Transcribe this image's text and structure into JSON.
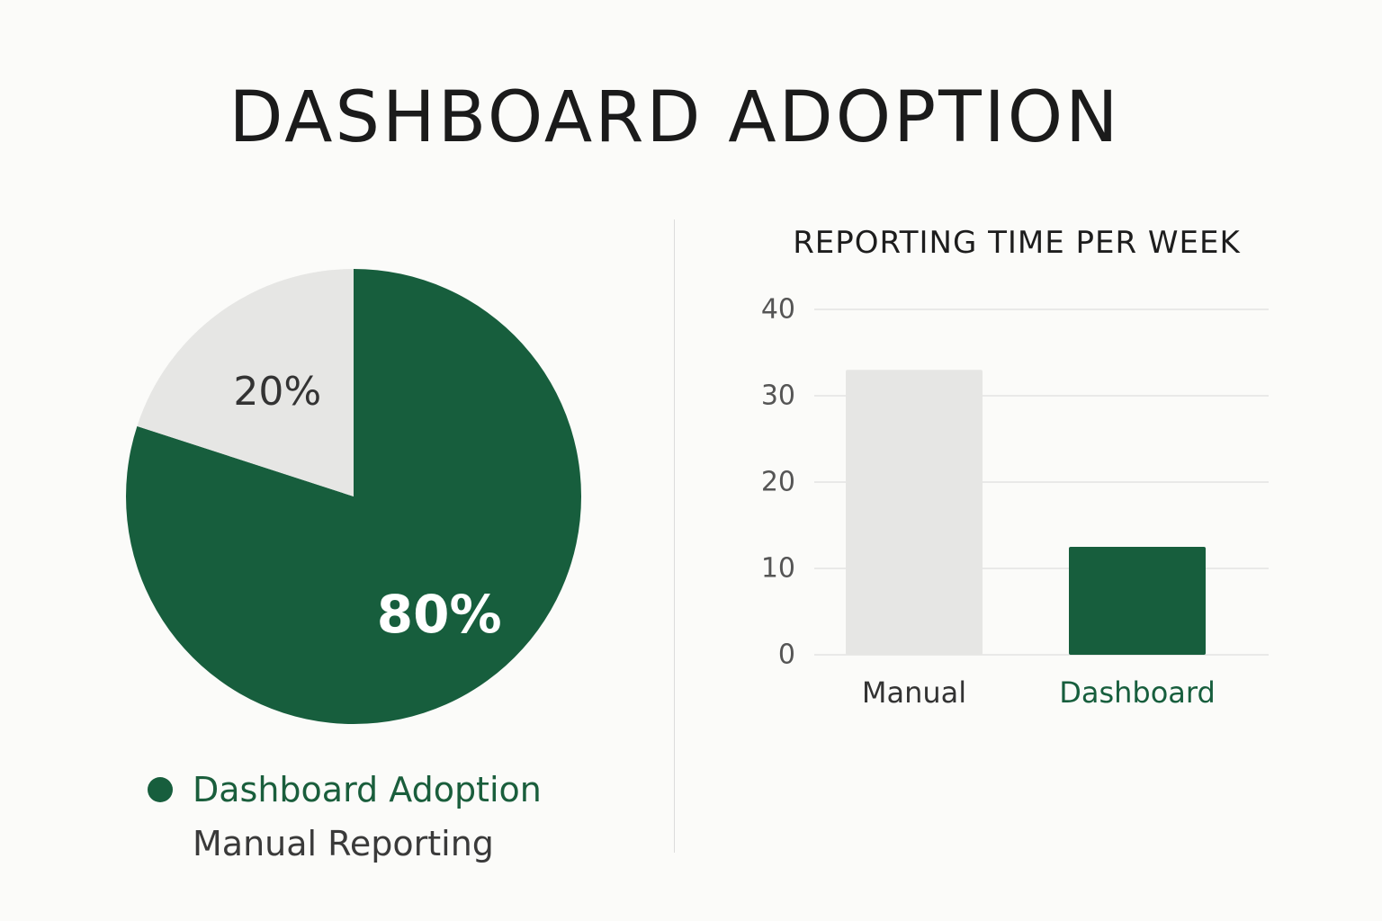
{
  "title": "DASHBOARD ADOPTION",
  "colors": {
    "primary": "#175e3d",
    "secondary": "#e6e6e4",
    "grid": "#e3e3e3",
    "pie_label_dark": "#333333",
    "pie_label_light": "#ffffff"
  },
  "legend": {
    "items": [
      {
        "label": "Dashboard Adoption",
        "color": "#175e3d"
      },
      {
        "label": "Manual Reporting",
        "color": "transparent"
      }
    ]
  },
  "chart_data": [
    {
      "type": "pie",
      "slices": [
        {
          "name": "Dashboard Adoption",
          "value": 80,
          "label": "80%"
        },
        {
          "name": "Manual Reporting",
          "value": 20,
          "label": "20%"
        }
      ]
    },
    {
      "type": "bar",
      "title": "REPORTING TIME PER WEEK",
      "categories": [
        "Manual",
        "Dashboard"
      ],
      "values": [
        33,
        12.5
      ],
      "ylim": [
        0,
        40
      ],
      "yticks": [
        0,
        10,
        20,
        30,
        40
      ],
      "grid": true
    }
  ]
}
